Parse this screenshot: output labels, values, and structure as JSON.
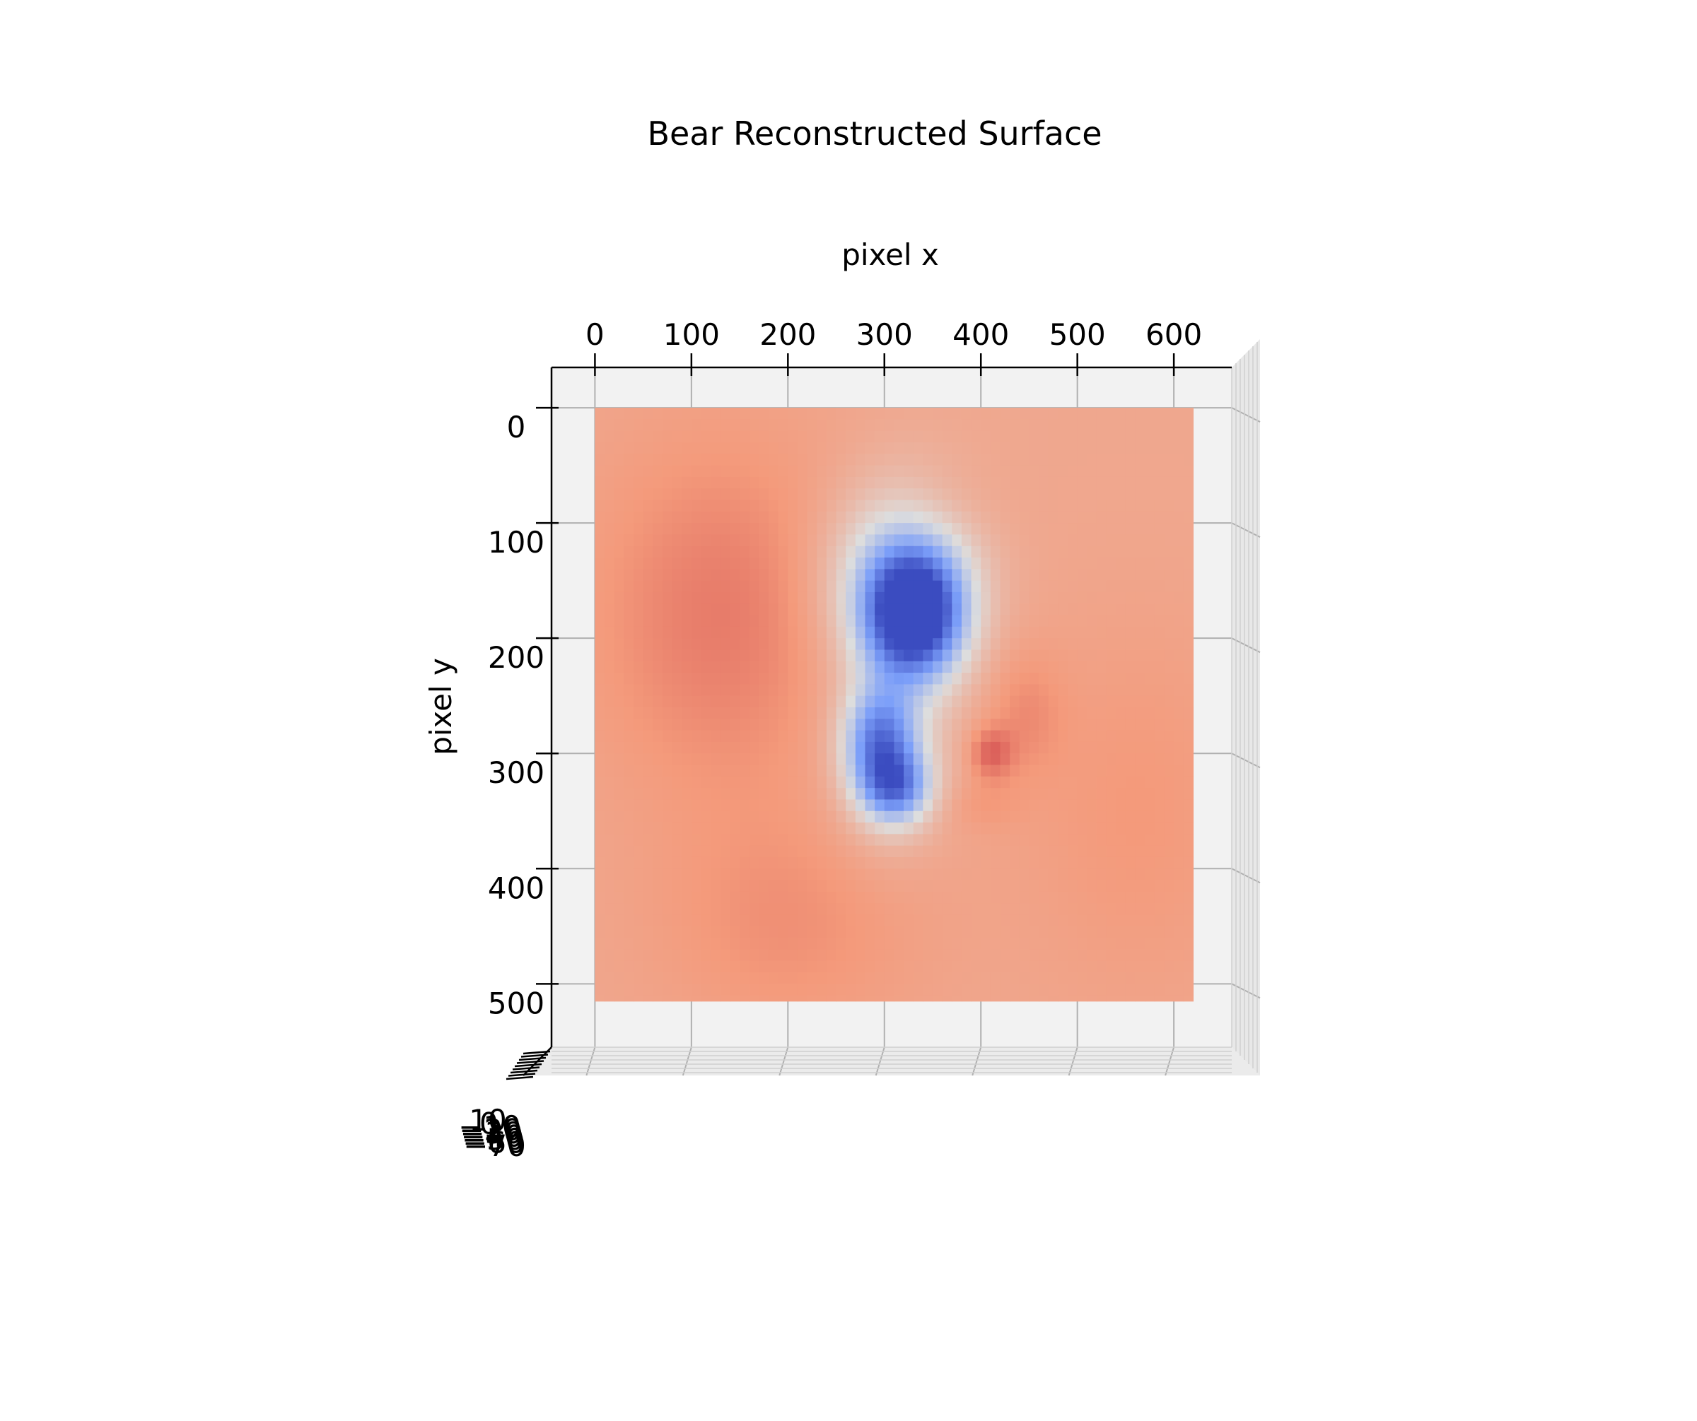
{
  "chart_data": {
    "type": "heatmap",
    "subtype": "3d-surface-top-view",
    "title": "Bear Reconstructed Surface",
    "xlabel": "pixel x",
    "ylabel": "pixel y",
    "x_ticks": [
      "0",
      "100",
      "200",
      "300",
      "400",
      "500",
      "600"
    ],
    "y_ticks": [
      "0",
      "100",
      "200",
      "300",
      "400",
      "500"
    ],
    "z_ticks": [
      "10",
      "0",
      "−10",
      "−20",
      "−30",
      "−40",
      "−50",
      "−60",
      "−70"
    ],
    "xlim": [
      -45,
      660
    ],
    "ylim": [
      -35,
      555
    ],
    "surface_extent": {
      "x": [
        0,
        620
      ],
      "y": [
        0,
        515
      ]
    },
    "colormap": "coolwarm",
    "z_range": [
      -70,
      10
    ],
    "grid": true,
    "surface_features": [
      {
        "label": "upper deep depression",
        "x": 330,
        "y": 180,
        "depth": -70
      },
      {
        "label": "lower depression",
        "x": 295,
        "y": 290,
        "depth": -48
      },
      {
        "label": "lower depression",
        "x": 310,
        "y": 330,
        "depth": -45
      },
      {
        "label": "ridge",
        "x": 445,
        "y": 265,
        "height": 10
      },
      {
        "label": "shoulder bump",
        "x": 410,
        "y": 300,
        "height": -12
      }
    ],
    "colors": {
      "pane": "#f2f2f2",
      "grid": "#b0b0b0",
      "low": "#3b4cc0",
      "high": "#b40426"
    }
  }
}
